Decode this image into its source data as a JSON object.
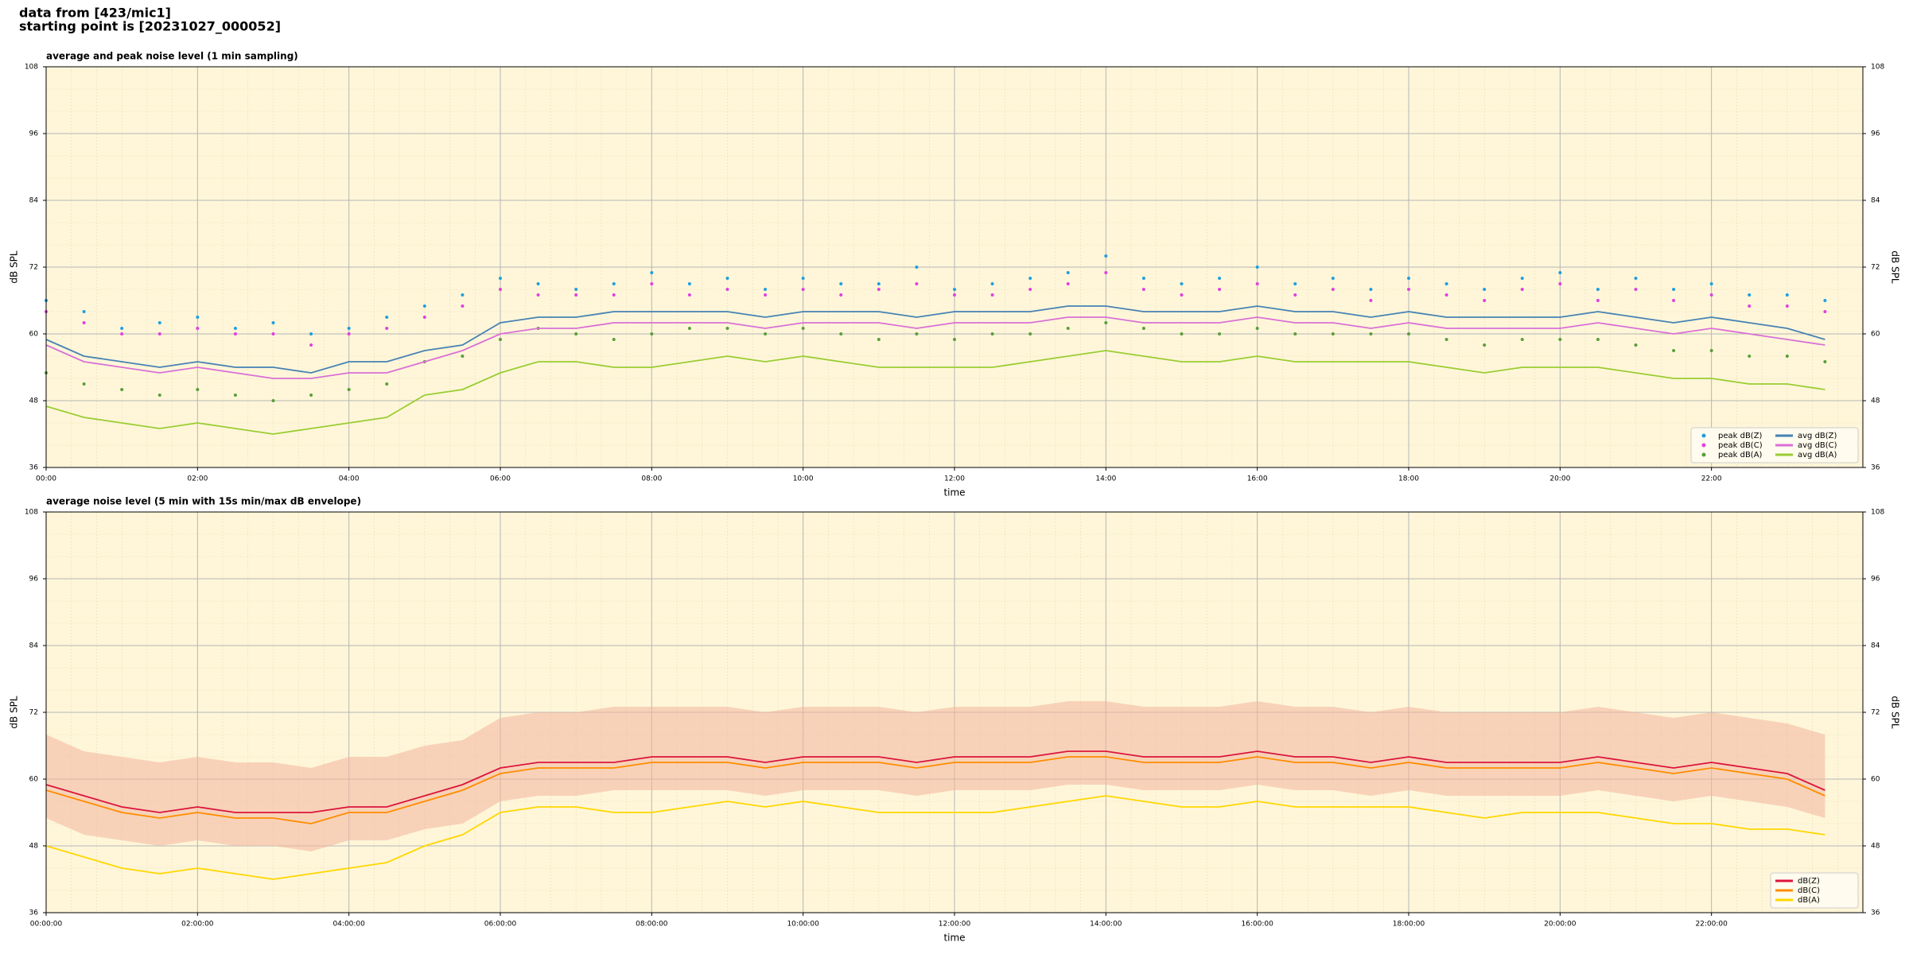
{
  "header": {
    "line1": "data from [423/mic1]",
    "line2": "starting point is [20231027_000052]"
  },
  "chart_data": [
    {
      "type": "line",
      "title": "average and peak noise level (1 min sampling)",
      "xlabel": "time",
      "ylabel": "dB SPL",
      "xlim": [
        0,
        24
      ],
      "ylim": [
        36,
        108
      ],
      "yticks": [
        36,
        48,
        60,
        72,
        84,
        96,
        108
      ],
      "xticks": [
        {
          "value": 0,
          "label": "00:00"
        },
        {
          "value": 2,
          "label": "02:00"
        },
        {
          "value": 4,
          "label": "04:00"
        },
        {
          "value": 6,
          "label": "06:00"
        },
        {
          "value": 8,
          "label": "08:00"
        },
        {
          "value": 10,
          "label": "10:00"
        },
        {
          "value": 12,
          "label": "12:00"
        },
        {
          "value": 14,
          "label": "14:00"
        },
        {
          "value": 16,
          "label": "16:00"
        },
        {
          "value": 18,
          "label": "18:00"
        },
        {
          "value": 20,
          "label": "20:00"
        },
        {
          "value": 22,
          "label": "22:00"
        }
      ],
      "grid": true,
      "minor_grid": true,
      "legend": "lower right",
      "legend_columns": 2,
      "x": [
        0,
        0.5,
        1,
        1.5,
        2,
        2.5,
        3,
        3.5,
        4,
        4.5,
        5,
        5.5,
        6,
        6.5,
        7,
        7.5,
        8,
        8.5,
        9,
        9.5,
        10,
        10.5,
        11,
        11.5,
        12,
        12.5,
        13,
        13.5,
        14,
        14.5,
        15,
        15.5,
        16,
        16.5,
        17,
        17.5,
        18,
        18.5,
        19,
        19.5,
        20,
        20.5,
        21,
        21.5,
        22,
        22.5,
        23,
        23.5
      ],
      "series": [
        {
          "name": "peak dB(Z)",
          "style": "points",
          "color": "#1e9fe0",
          "values": [
            66,
            64,
            61,
            62,
            63,
            61,
            62,
            60,
            61,
            63,
            65,
            67,
            70,
            69,
            68,
            69,
            71,
            69,
            70,
            68,
            70,
            69,
            69,
            72,
            68,
            69,
            70,
            71,
            74,
            70,
            69,
            70,
            72,
            69,
            70,
            68,
            70,
            69,
            68,
            70,
            71,
            68,
            70,
            68,
            69,
            67,
            67,
            66
          ]
        },
        {
          "name": "peak dB(C)",
          "style": "points",
          "color": "#e040e0",
          "values": [
            64,
            62,
            60,
            60,
            61,
            60,
            60,
            58,
            60,
            61,
            63,
            65,
            68,
            67,
            67,
            67,
            69,
            67,
            68,
            67,
            68,
            67,
            68,
            69,
            67,
            67,
            68,
            69,
            71,
            68,
            67,
            68,
            69,
            67,
            68,
            66,
            68,
            67,
            66,
            68,
            69,
            66,
            68,
            66,
            67,
            65,
            65,
            64
          ]
        },
        {
          "name": "peak dB(A)",
          "style": "points",
          "color": "#5a9e3a",
          "values": [
            53,
            51,
            50,
            49,
            50,
            49,
            48,
            49,
            50,
            51,
            55,
            56,
            59,
            61,
            60,
            59,
            60,
            61,
            61,
            60,
            61,
            60,
            59,
            60,
            59,
            60,
            60,
            61,
            62,
            61,
            60,
            60,
            61,
            60,
            60,
            60,
            60,
            59,
            58,
            59,
            59,
            59,
            58,
            57,
            57,
            56,
            56,
            55
          ]
        },
        {
          "name": "avg dB(Z)",
          "style": "line",
          "color": "#4682b4",
          "values": [
            59,
            56,
            55,
            54,
            55,
            54,
            54,
            53,
            55,
            55,
            57,
            58,
            62,
            63,
            63,
            64,
            64,
            64,
            64,
            63,
            64,
            64,
            64,
            63,
            64,
            64,
            64,
            65,
            65,
            64,
            64,
            64,
            65,
            64,
            64,
            63,
            64,
            63,
            63,
            63,
            63,
            64,
            63,
            62,
            63,
            62,
            61,
            59
          ]
        },
        {
          "name": "avg dB(C)",
          "style": "line",
          "color": "#da70d6",
          "values": [
            58,
            55,
            54,
            53,
            54,
            53,
            52,
            52,
            53,
            53,
            55,
            57,
            60,
            61,
            61,
            62,
            62,
            62,
            62,
            61,
            62,
            62,
            62,
            61,
            62,
            62,
            62,
            63,
            63,
            62,
            62,
            62,
            63,
            62,
            62,
            61,
            62,
            61,
            61,
            61,
            61,
            62,
            61,
            60,
            61,
            60,
            59,
            58
          ]
        },
        {
          "name": "avg dB(A)",
          "style": "line",
          "color": "#9acd32",
          "values": [
            47,
            45,
            44,
            43,
            44,
            43,
            42,
            43,
            44,
            45,
            49,
            50,
            53,
            55,
            55,
            54,
            54,
            55,
            56,
            55,
            56,
            55,
            54,
            54,
            54,
            54,
            55,
            56,
            57,
            56,
            55,
            55,
            56,
            55,
            55,
            55,
            55,
            54,
            53,
            54,
            54,
            54,
            53,
            52,
            52,
            51,
            51,
            50
          ]
        }
      ]
    },
    {
      "type": "line",
      "title": "average noise level (5 min with 15s min/max dB envelope)",
      "xlabel": "time",
      "ylabel": "dB SPL",
      "xlim": [
        0,
        24
      ],
      "ylim": [
        36,
        108
      ],
      "yticks": [
        36,
        48,
        60,
        72,
        84,
        96,
        108
      ],
      "xticks": [
        {
          "value": 0,
          "label": "00:00:00"
        },
        {
          "value": 2,
          "label": "02:00:00"
        },
        {
          "value": 4,
          "label": "04:00:00"
        },
        {
          "value": 6,
          "label": "06:00:00"
        },
        {
          "value": 8,
          "label": "08:00:00"
        },
        {
          "value": 10,
          "label": "10:00:00"
        },
        {
          "value": 12,
          "label": "12:00:00"
        },
        {
          "value": 14,
          "label": "14:00:00"
        },
        {
          "value": 16,
          "label": "16:00:00"
        },
        {
          "value": 18,
          "label": "18:00:00"
        },
        {
          "value": 20,
          "label": "20:00:00"
        },
        {
          "value": 22,
          "label": "22:00:00"
        }
      ],
      "grid": true,
      "minor_grid": true,
      "legend": "lower right",
      "legend_columns": 1,
      "x": [
        0,
        0.5,
        1,
        1.5,
        2,
        2.5,
        3,
        3.5,
        4,
        4.5,
        5,
        5.5,
        6,
        6.5,
        7,
        7.5,
        8,
        8.5,
        9,
        9.5,
        10,
        10.5,
        11,
        11.5,
        12,
        12.5,
        13,
        13.5,
        14,
        14.5,
        15,
        15.5,
        16,
        16.5,
        17,
        17.5,
        18,
        18.5,
        19,
        19.5,
        20,
        20.5,
        21,
        21.5,
        22,
        22.5,
        23,
        23.5
      ],
      "envelope": {
        "color": "#f2b49c",
        "low": [
          53,
          50,
          49,
          48,
          49,
          48,
          48,
          47,
          49,
          49,
          51,
          52,
          56,
          57,
          57,
          58,
          58,
          58,
          58,
          57,
          58,
          58,
          58,
          57,
          58,
          58,
          58,
          59,
          59,
          58,
          58,
          58,
          59,
          58,
          58,
          57,
          58,
          57,
          57,
          57,
          57,
          58,
          57,
          56,
          57,
          56,
          55,
          53
        ],
        "high": [
          68,
          65,
          64,
          63,
          64,
          63,
          63,
          62,
          64,
          64,
          66,
          67,
          71,
          72,
          72,
          73,
          73,
          73,
          73,
          72,
          73,
          73,
          73,
          72,
          73,
          73,
          73,
          74,
          74,
          73,
          73,
          73,
          74,
          73,
          73,
          72,
          73,
          72,
          72,
          72,
          72,
          73,
          72,
          71,
          72,
          71,
          70,
          68
        ]
      },
      "series": [
        {
          "name": "dB(Z)",
          "style": "line",
          "color": "#dc143c",
          "values": [
            59,
            57,
            55,
            54,
            55,
            54,
            54,
            54,
            55,
            55,
            57,
            59,
            62,
            63,
            63,
            63,
            64,
            64,
            64,
            63,
            64,
            64,
            64,
            63,
            64,
            64,
            64,
            65,
            65,
            64,
            64,
            64,
            65,
            64,
            64,
            63,
            64,
            63,
            63,
            63,
            63,
            64,
            63,
            62,
            63,
            62,
            61,
            58
          ]
        },
        {
          "name": "dB(C)",
          "style": "line",
          "color": "#ff8c00",
          "values": [
            58,
            56,
            54,
            53,
            54,
            53,
            53,
            52,
            54,
            54,
            56,
            58,
            61,
            62,
            62,
            62,
            63,
            63,
            63,
            62,
            63,
            63,
            63,
            62,
            63,
            63,
            63,
            64,
            64,
            63,
            63,
            63,
            64,
            63,
            63,
            62,
            63,
            62,
            62,
            62,
            62,
            63,
            62,
            61,
            62,
            61,
            60,
            57
          ]
        },
        {
          "name": "dB(A)",
          "style": "line",
          "color": "#ffd700",
          "values": [
            48,
            46,
            44,
            43,
            44,
            43,
            42,
            43,
            44,
            45,
            48,
            50,
            54,
            55,
            55,
            54,
            54,
            55,
            56,
            55,
            56,
            55,
            54,
            54,
            54,
            54,
            55,
            56,
            57,
            56,
            55,
            55,
            56,
            55,
            55,
            55,
            55,
            54,
            53,
            54,
            54,
            54,
            53,
            52,
            52,
            51,
            51,
            50
          ]
        }
      ]
    }
  ]
}
